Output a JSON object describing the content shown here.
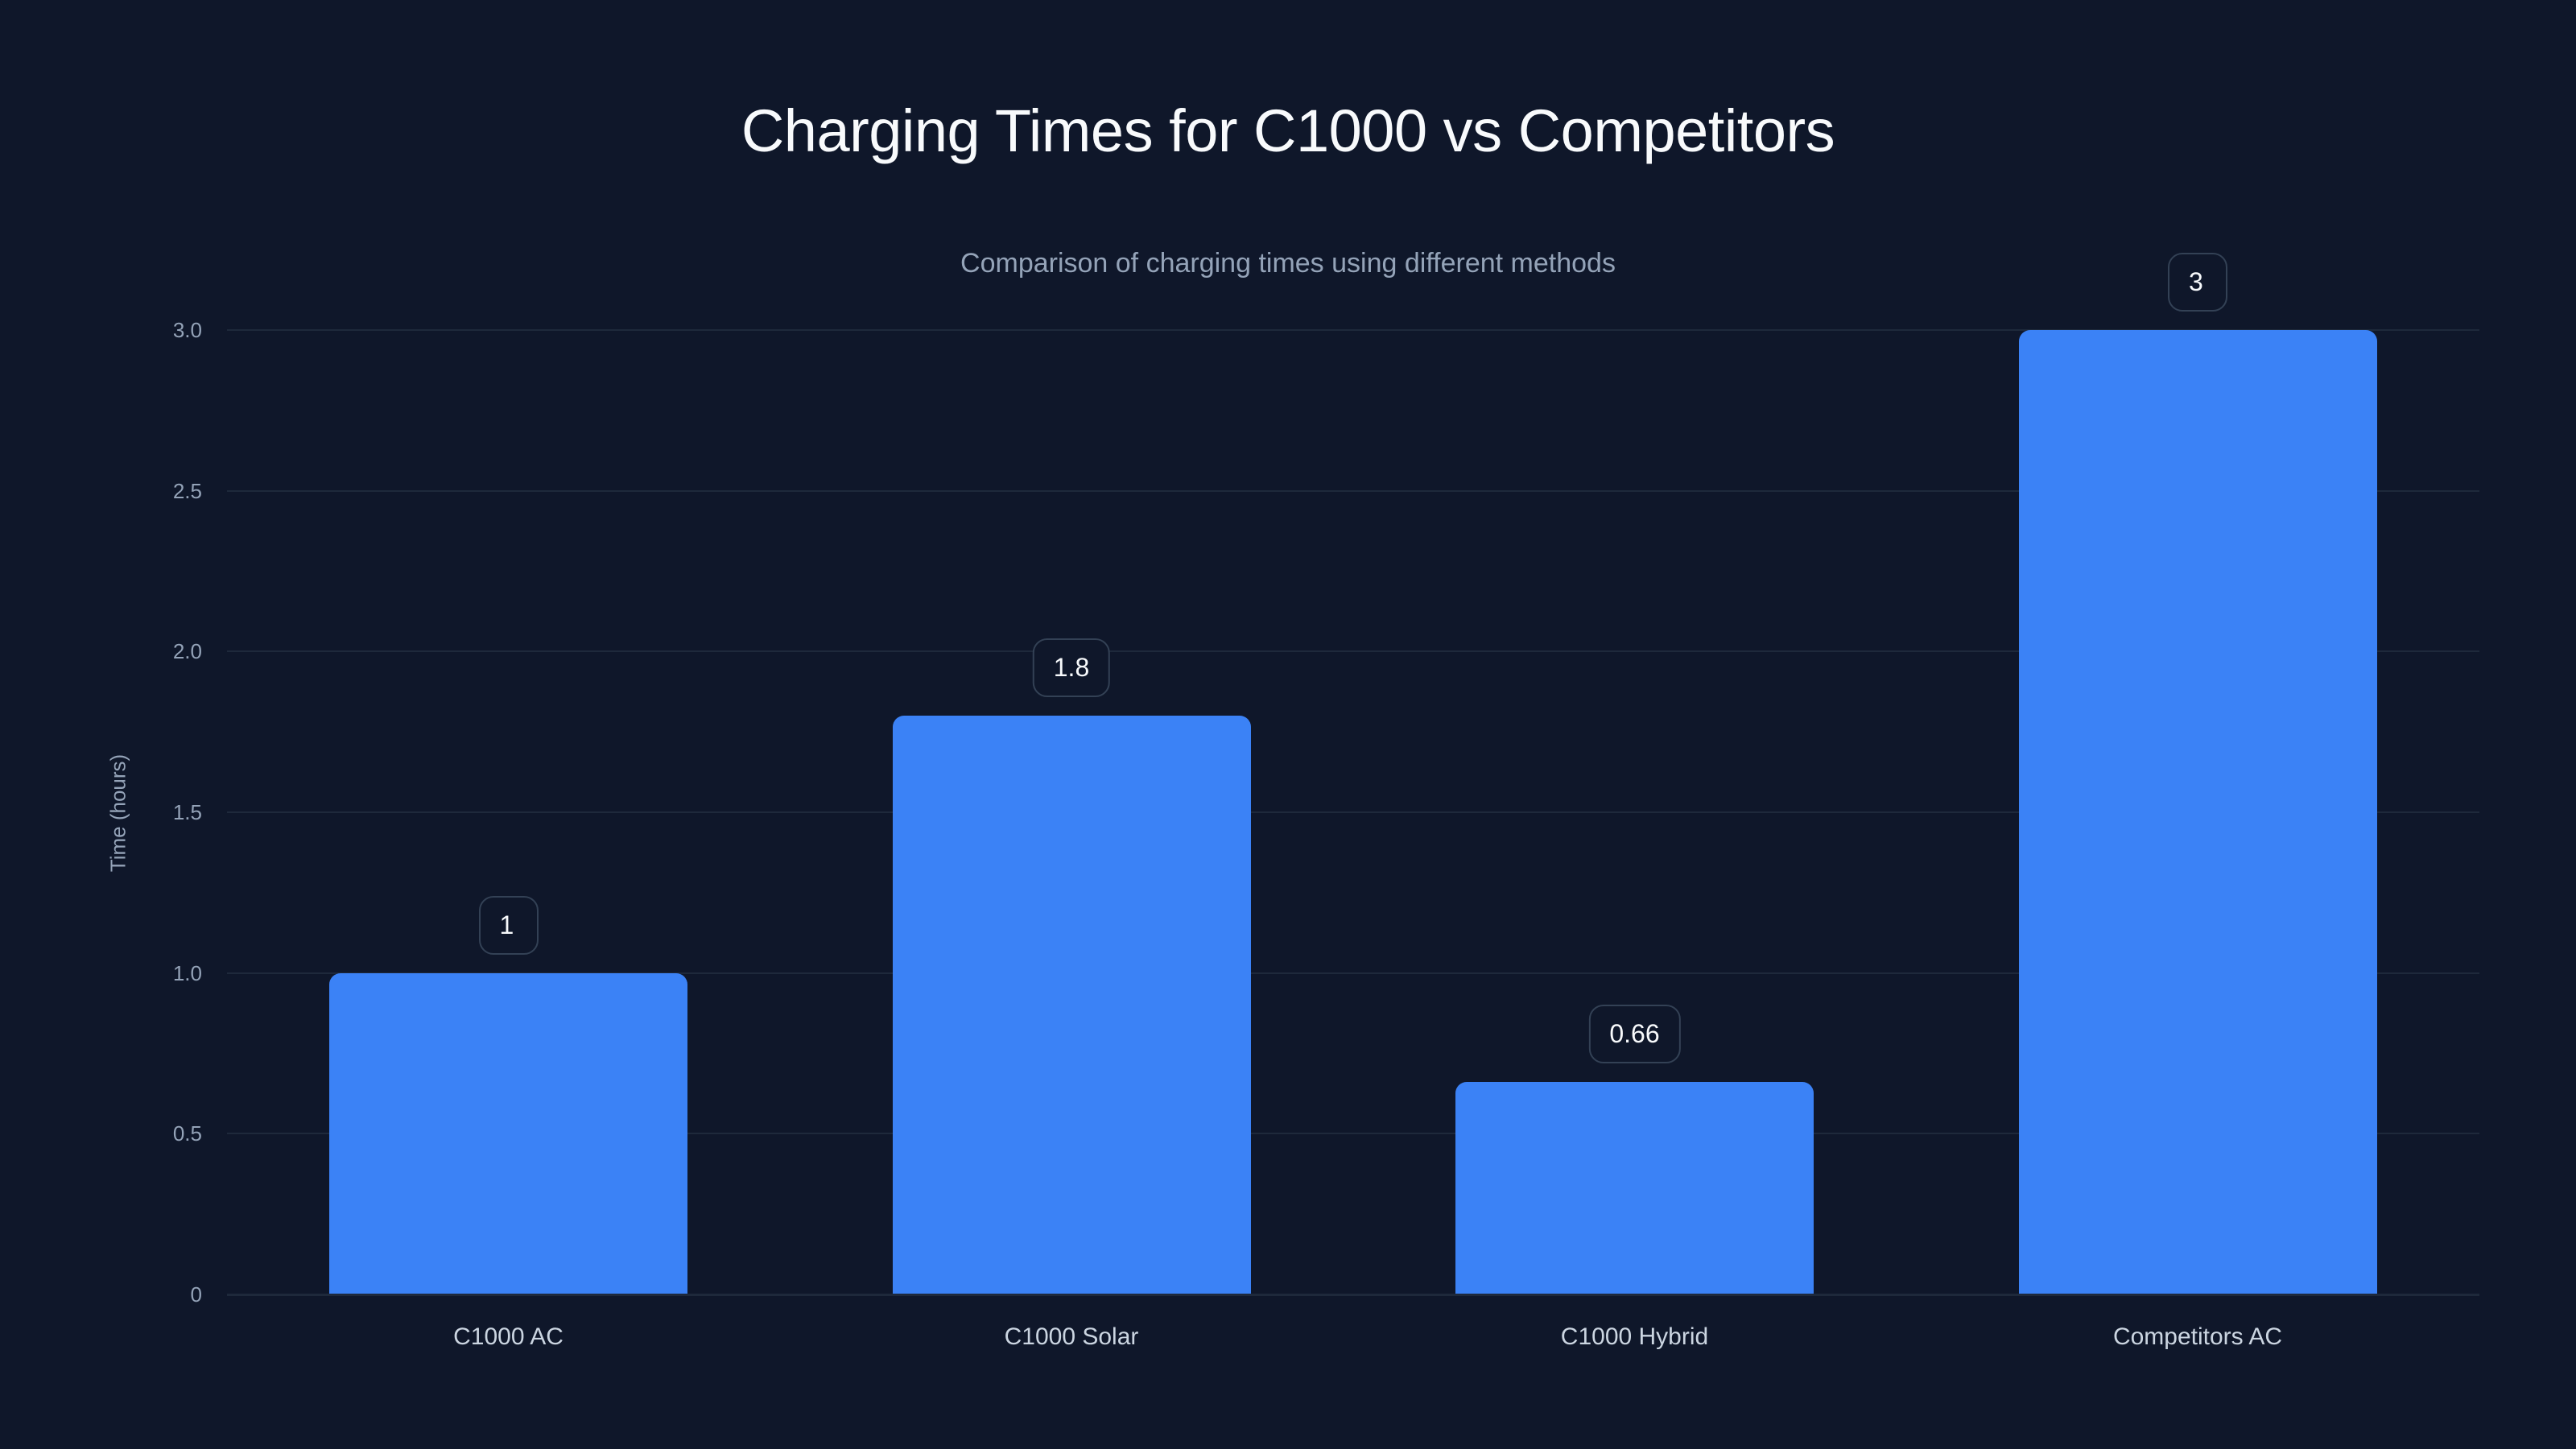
{
  "header": {
    "title": "Charging Times for C1000 vs Competitors",
    "subtitle": "Comparison of charging times using different methods"
  },
  "axes": {
    "y_title": "Time (hours)",
    "y_ticks": [
      "0",
      "0.5",
      "1.0",
      "1.5",
      "2.0",
      "2.5",
      "3.0"
    ]
  },
  "bars": [
    {
      "category": "C1000 AC",
      "value": 1,
      "label": "1"
    },
    {
      "category": "C1000 Solar",
      "value": 1.8,
      "label": "1.8"
    },
    {
      "category": "C1000 Hybrid",
      "value": 0.66,
      "label": "0.66"
    },
    {
      "category": "Competitors AC",
      "value": 3,
      "label": "3"
    }
  ],
  "colors": {
    "background": "#0f172a",
    "bar": "#3b82f6",
    "grid": "#1e293b",
    "badge_border": "#334155",
    "title": "#f8fafc",
    "muted_text": "#94a3b8"
  },
  "chart_data": {
    "type": "bar",
    "title": "Charging Times for C1000 vs Competitors",
    "subtitle": "Comparison of charging times using different methods",
    "categories": [
      "C1000 AC",
      "C1000 Solar",
      "C1000 Hybrid",
      "Competitors AC"
    ],
    "values": [
      1,
      1.8,
      0.66,
      3
    ],
    "xlabel": "",
    "ylabel": "Time (hours)",
    "ylim": [
      0,
      3
    ],
    "yticks": [
      0,
      0.5,
      1.0,
      1.5,
      2.0,
      2.5,
      3.0
    ],
    "grid": "horizontal",
    "legend": "none",
    "data_labels": true
  }
}
